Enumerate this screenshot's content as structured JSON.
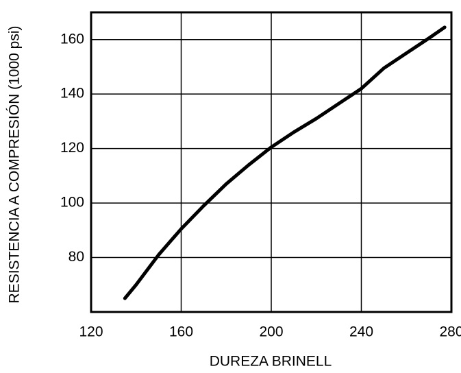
{
  "chart_data": {
    "type": "line",
    "x_label": "DUREZA BRINELL",
    "y_label": "RESISTENCIA A COMPRESIÓN (1000 psi)",
    "x": [
      135,
      140,
      150,
      160,
      170,
      180,
      190,
      200,
      210,
      220,
      230,
      240,
      250,
      260,
      270,
      277
    ],
    "series": [
      {
        "color": "#000000",
        "values": [
          65,
          70,
          81,
          90.5,
          99,
          107,
          114,
          120.5,
          126,
          131,
          136.5,
          142,
          149.5,
          155,
          160.5,
          164.5
        ]
      }
    ],
    "xlim": [
      120,
      280
    ],
    "xticks": [
      120,
      160,
      200,
      240,
      280
    ],
    "ylim": [
      60,
      170
    ],
    "yticks": [
      80,
      100,
      120,
      140,
      160
    ],
    "grid": true
  }
}
